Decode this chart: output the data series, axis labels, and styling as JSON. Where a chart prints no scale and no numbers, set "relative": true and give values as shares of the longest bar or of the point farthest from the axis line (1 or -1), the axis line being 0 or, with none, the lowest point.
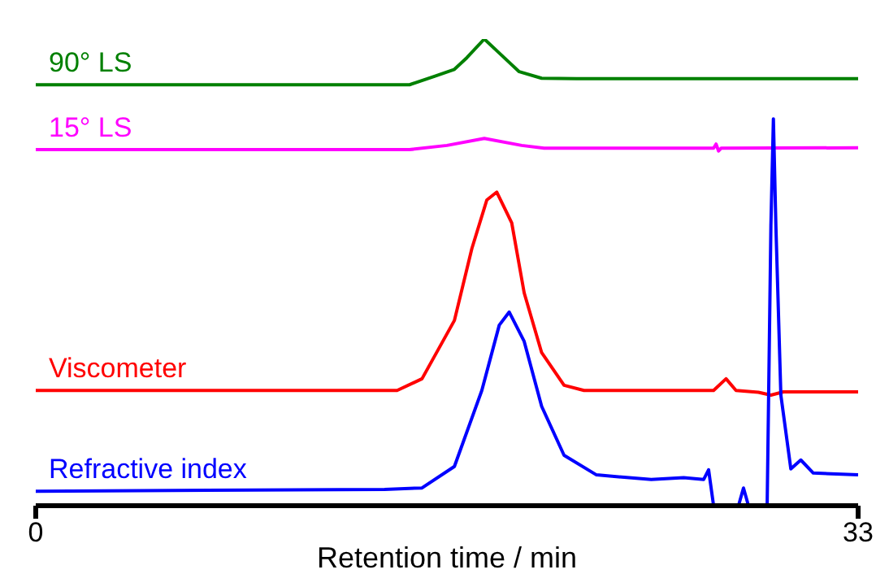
{
  "chart_data": {
    "type": "line",
    "xlabel": "Retention time / min",
    "relative": true,
    "xlim": [
      0,
      33
    ],
    "xticks": [
      0,
      33
    ],
    "legend": false,
    "grid": false,
    "marker": "none",
    "line_style": "solid",
    "series": [
      {
        "name": "90° LS",
        "color": "#008000",
        "x": [
          0,
          15.0,
          16.0,
          16.8,
          17.3,
          18.0,
          18.7,
          19.4,
          20.3,
          21.7,
          33
        ],
        "values": [
          0.902,
          0.902,
          0.92,
          0.935,
          0.96,
          1,
          0.965,
          0.93,
          0.916,
          0.915,
          0.915
        ]
      },
      {
        "name": "15° LS",
        "color": "#ff00ff",
        "x": [
          0,
          15.0,
          16.5,
          18.0,
          19.5,
          20.4,
          27.2,
          27.3,
          27.4,
          27.5,
          33
        ],
        "values": [
          0.763,
          0.763,
          0.772,
          0.787,
          0.772,
          0.766,
          0.766,
          0.775,
          0.76,
          0.766,
          0.767
        ]
      },
      {
        "name": "Viscometer",
        "color": "#ff0000",
        "x": [
          0,
          14.5,
          15.5,
          16.8,
          17.5,
          18.1,
          18.5,
          19.1,
          19.6,
          20.3,
          21.2,
          22.0,
          27.2,
          27.7,
          28.1,
          29.0,
          29.5,
          30.0,
          33
        ],
        "values": [
          0.247,
          0.247,
          0.272,
          0.397,
          0.551,
          0.655,
          0.672,
          0.606,
          0.456,
          0.328,
          0.258,
          0.247,
          0.247,
          0.272,
          0.247,
          0.243,
          0.237,
          0.244,
          0.244
        ]
      },
      {
        "name": "Refractive index",
        "color": "#0000ff",
        "x": [
          0,
          14.0,
          15.5,
          16.8,
          17.9,
          18.6,
          19.0,
          19.6,
          20.3,
          21.2,
          22.5,
          24.7,
          26.0,
          26.8,
          27.0,
          27.2,
          28.2,
          28.4,
          28.6,
          29.2,
          29.35,
          29.5,
          29.6,
          29.7,
          29.9,
          30.3,
          30.7,
          31.2,
          33
        ],
        "values": [
          0.031,
          0.035,
          0.038,
          0.084,
          0.247,
          0.387,
          0.415,
          0.352,
          0.213,
          0.108,
          0.066,
          0.056,
          0.06,
          0.056,
          0.077,
          0,
          0,
          0.038,
          0,
          0,
          0,
          0.6,
          0.829,
          0.6,
          0.237,
          0.079,
          0.098,
          0.07,
          0.066
        ]
      }
    ]
  }
}
